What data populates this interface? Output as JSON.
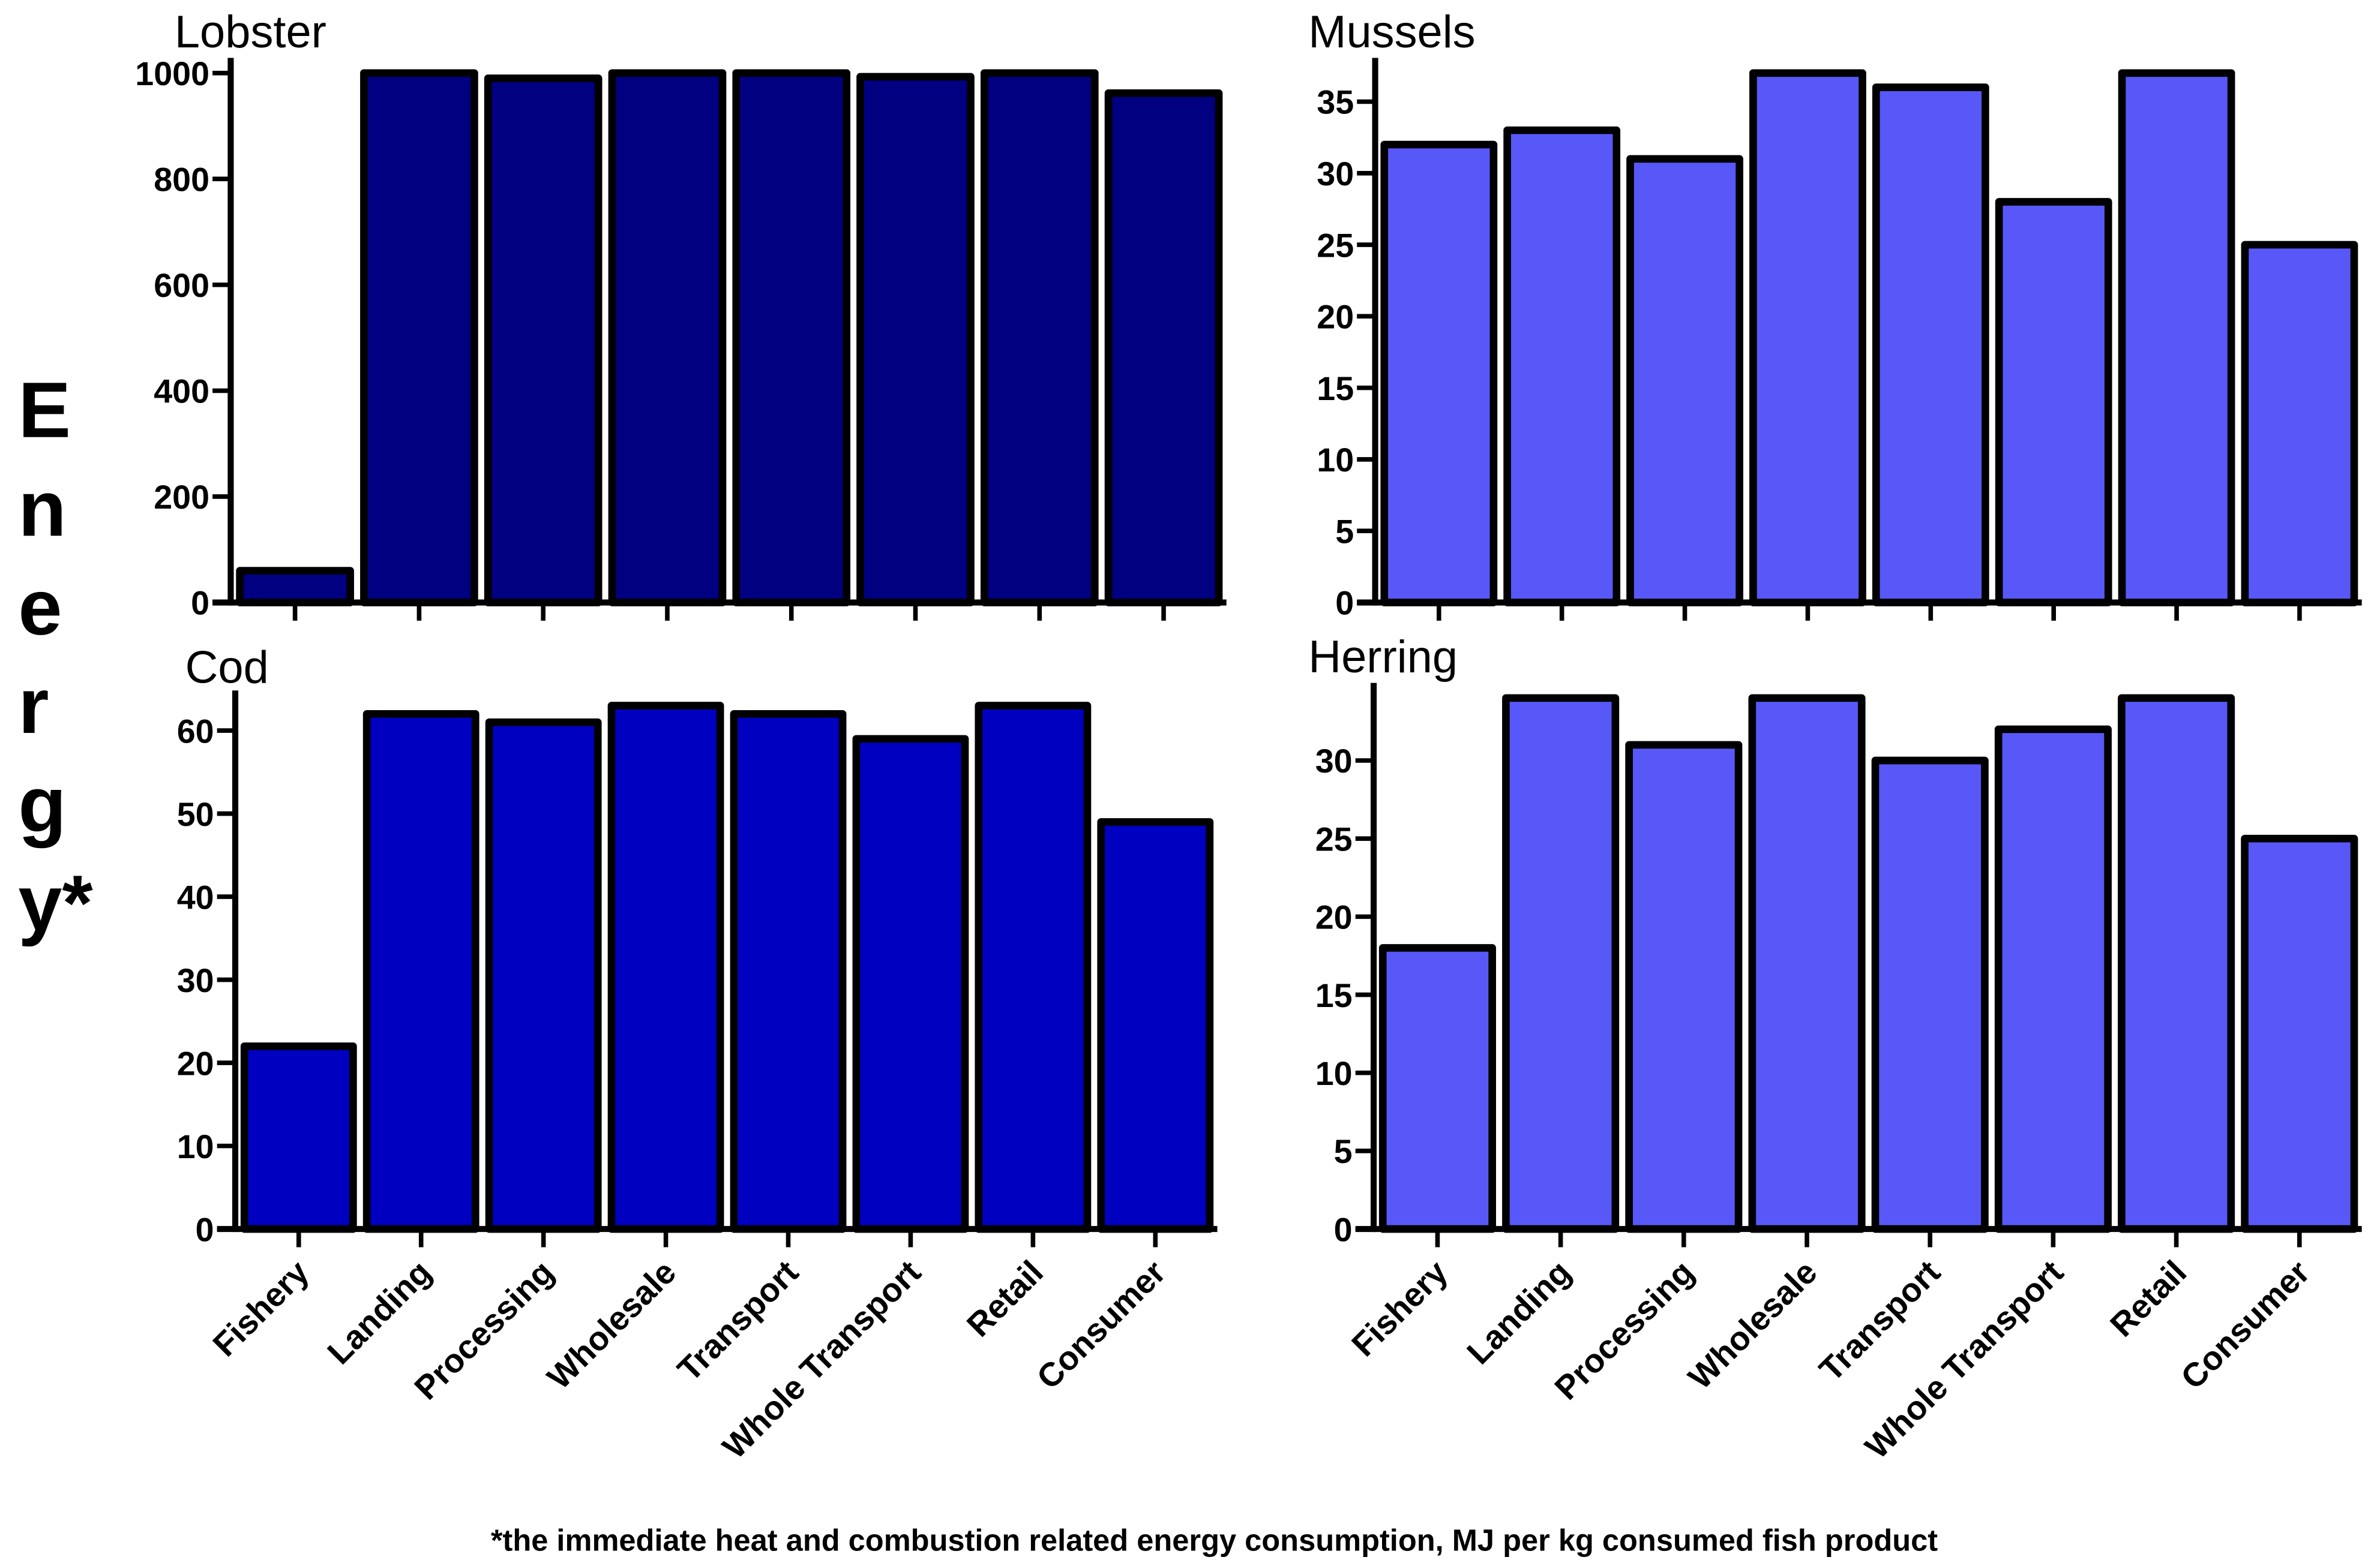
{
  "ylabel_letters": [
    "E",
    "n",
    "e",
    "r",
    "g",
    "y*"
  ],
  "footnote": "*the immediate heat and combustion related energy consumption, MJ per kg consumed fish product",
  "chart_data": [
    {
      "type": "bar",
      "title": "Lobster",
      "color": "#000080",
      "categories": [
        "Fishery",
        "Landing",
        "Processing",
        "Wholesale",
        "Transport",
        "Whole Transport",
        "Retail",
        "Consumer"
      ],
      "values": [
        60,
        1000,
        990,
        1000,
        1000,
        993,
        1000,
        962
      ],
      "yticks": [
        0,
        200,
        400,
        600,
        800,
        1000
      ],
      "ylim": [
        0,
        1000
      ],
      "show_xlabels": false
    },
    {
      "type": "bar",
      "title": "Mussels",
      "color": "#5858F8",
      "categories": [
        "Fishery",
        "Landing",
        "Processing",
        "Wholesale",
        "Transport",
        "Whole Transport",
        "Retail",
        "Consumer"
      ],
      "values": [
        32,
        33,
        31,
        37,
        36,
        28,
        37,
        25
      ],
      "yticks": [
        0,
        5,
        10,
        15,
        20,
        25,
        30,
        35
      ],
      "ylim": [
        0,
        37
      ],
      "show_xlabels": false
    },
    {
      "type": "bar",
      "title": "Cod",
      "color": "#0000C0",
      "categories": [
        "Fishery",
        "Landing",
        "Processing",
        "Wholesale",
        "Transport",
        "Whole Transport",
        "Retail",
        "Consumer"
      ],
      "values": [
        22,
        62,
        61,
        63,
        62,
        59,
        63,
        49
      ],
      "yticks": [
        0,
        10,
        20,
        30,
        40,
        50,
        60
      ],
      "ylim": [
        0,
        63
      ],
      "show_xlabels": true
    },
    {
      "type": "bar",
      "title": "Herring",
      "color": "#5858F8",
      "categories": [
        "Fishery",
        "Landing",
        "Processing",
        "Wholesale",
        "Transport",
        "Whole Transport",
        "Retail",
        "Consumer"
      ],
      "values": [
        18,
        34,
        31,
        34,
        30,
        32,
        34,
        25
      ],
      "yticks": [
        0,
        5,
        10,
        15,
        20,
        25,
        30
      ],
      "ylim": [
        0,
        34
      ],
      "show_xlabels": true
    }
  ]
}
